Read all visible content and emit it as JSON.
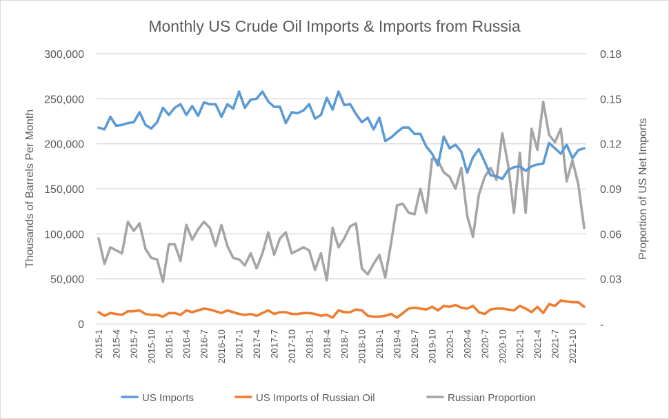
{
  "chart_data": {
    "type": "line",
    "title": "Monthly US Crude Oil Imports & Imports from Russia",
    "ylabel": "Thousands of Barrels Per Month",
    "y2label": "Proportion of US Net Imports",
    "ylim": [
      0,
      300000
    ],
    "y2lim": [
      0,
      0.18
    ],
    "yticks": [
      "0",
      "50,000",
      "100,000",
      "150,000",
      "200,000",
      "250,000",
      "300,000"
    ],
    "y2ticks": [
      "-",
      "0.03",
      "0.06",
      "0.09",
      "0.12",
      "0.15",
      "0.18"
    ],
    "grid": true,
    "legend_position": "bottom",
    "x_start": "2015-1",
    "x_label_every": 3,
    "x": [
      "2015-1",
      "2015-2",
      "2015-3",
      "2015-4",
      "2015-5",
      "2015-6",
      "2015-7",
      "2015-8",
      "2015-9",
      "2015-10",
      "2015-11",
      "2015-12",
      "2016-1",
      "2016-2",
      "2016-3",
      "2016-4",
      "2016-5",
      "2016-6",
      "2016-7",
      "2016-8",
      "2016-9",
      "2016-10",
      "2016-11",
      "2016-12",
      "2017-1",
      "2017-2",
      "2017-3",
      "2017-4",
      "2017-5",
      "2017-6",
      "2017-7",
      "2017-8",
      "2017-9",
      "2017-10",
      "2017-11",
      "2017-12",
      "2018-1",
      "2018-2",
      "2018-3",
      "2018-4",
      "2018-5",
      "2018-6",
      "2018-7",
      "2018-8",
      "2018-9",
      "2018-10",
      "2018-11",
      "2018-12",
      "2019-1",
      "2019-2",
      "2019-3",
      "2019-4",
      "2019-5",
      "2019-6",
      "2019-7",
      "2019-8",
      "2019-9",
      "2019-10",
      "2019-11",
      "2019-12",
      "2020-1",
      "2020-2",
      "2020-3",
      "2020-4",
      "2020-5",
      "2020-6",
      "2020-7",
      "2020-8",
      "2020-9",
      "2020-10",
      "2020-11",
      "2020-12",
      "2021-1",
      "2021-2",
      "2021-3",
      "2021-4",
      "2021-5",
      "2021-6",
      "2021-7",
      "2021-8",
      "2021-9",
      "2021-10",
      "2021-11",
      "2021-12"
    ],
    "series": [
      {
        "name": "US Imports",
        "axis": "left",
        "color": "#5b9bd5",
        "values": [
          218000,
          216000,
          230000,
          220000,
          221000,
          223000,
          224000,
          235000,
          221000,
          217000,
          224000,
          240000,
          232000,
          240000,
          244000,
          232000,
          242000,
          231000,
          246000,
          244000,
          244000,
          230000,
          244000,
          239000,
          258000,
          240000,
          249000,
          250000,
          258000,
          247000,
          241000,
          241000,
          223000,
          235000,
          234000,
          237000,
          244000,
          228000,
          232000,
          251000,
          238000,
          258000,
          243000,
          244000,
          233000,
          224000,
          229000,
          216000,
          229000,
          203000,
          207000,
          213000,
          218000,
          218000,
          211000,
          211000,
          197000,
          189000,
          176000,
          208000,
          195000,
          199000,
          191000,
          168000,
          185000,
          194000,
          180000,
          165000,
          164000,
          161000,
          171000,
          174000,
          175000,
          170000,
          175000,
          177000,
          178000,
          201000,
          195000,
          189000,
          199000,
          184000,
          193000,
          195000
        ]
      },
      {
        "name": "US Imports of Russian Oil",
        "axis": "left",
        "color": "#ed7d31",
        "values": [
          13000,
          9000,
          12000,
          11000,
          10000,
          14000,
          14000,
          15000,
          11000,
          10000,
          10000,
          8000,
          12000,
          12000,
          10000,
          15000,
          13000,
          15000,
          17000,
          16000,
          14000,
          12000,
          15000,
          13000,
          11000,
          10000,
          11000,
          9000,
          12000,
          15000,
          11000,
          13000,
          13000,
          11000,
          11000,
          12000,
          12000,
          11000,
          9000,
          10000,
          7000,
          15000,
          13000,
          13000,
          16000,
          15000,
          9000,
          8000,
          8000,
          9000,
          11000,
          7000,
          12000,
          17000,
          18000,
          17000,
          16000,
          19000,
          15000,
          20000,
          19000,
          21000,
          18000,
          17000,
          20000,
          13000,
          11000,
          16000,
          17000,
          17000,
          16000,
          15000,
          20000,
          17000,
          13000,
          19000,
          12000,
          22000,
          20000,
          26000,
          25000,
          24000,
          24000,
          19000
        ]
      },
      {
        "name": "Russian Proportion",
        "axis": "right",
        "color": "#a5a5a5",
        "values": [
          0.057,
          0.04,
          0.051,
          0.049,
          0.047,
          0.068,
          0.062,
          0.067,
          0.05,
          0.044,
          0.043,
          0.028,
          0.053,
          0.053,
          0.042,
          0.066,
          0.056,
          0.063,
          0.068,
          0.064,
          0.052,
          0.066,
          0.052,
          0.044,
          0.043,
          0.039,
          0.047,
          0.037,
          0.047,
          0.061,
          0.046,
          0.057,
          0.061,
          0.047,
          0.049,
          0.051,
          0.049,
          0.036,
          0.047,
          0.029,
          0.064,
          0.051,
          0.057,
          0.065,
          0.067,
          0.037,
          0.033,
          0.04,
          0.046,
          0.031,
          0.054,
          0.079,
          0.08,
          0.074,
          0.073,
          0.09,
          0.074,
          0.11,
          0.109,
          0.101,
          0.098,
          0.09,
          0.104,
          0.072,
          0.058,
          0.086,
          0.098,
          0.104,
          0.096,
          0.127,
          0.106,
          0.074,
          0.114,
          0.074,
          0.13,
          0.116,
          0.148,
          0.126,
          0.121,
          0.13,
          0.095,
          0.109,
          0.093,
          0.064
        ]
      }
    ]
  }
}
